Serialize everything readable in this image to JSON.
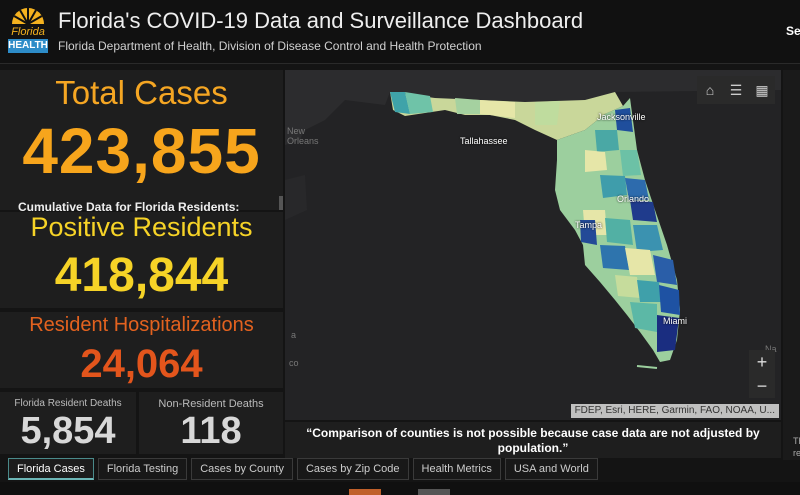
{
  "header": {
    "logo_word1": "Florida",
    "logo_word2": "HEALTH",
    "title": "Florida's COVID-19 Data and Surveillance Dashboard",
    "subtitle": "Florida Department of Health, Division of Disease Control and Health Protection",
    "right_clip": "Se"
  },
  "stats": {
    "total_label": "Total Cases",
    "total_value": "423,855",
    "cumulative_note": "Cumulative Data for Florida Residents:",
    "positive_label": "Positive Residents",
    "positive_value": "418,844",
    "hosp_label": "Resident Hospitalizations",
    "hosp_value": "24,064",
    "deaths_label": "Florida Resident Deaths",
    "deaths_value": "5,854",
    "nr_deaths_label": "Non-Resident Deaths",
    "nr_deaths_value": "118"
  },
  "map": {
    "cities": {
      "new_orleans_1": "New",
      "new_orleans_2": "Orleans",
      "tallahassee": "Tallahassee",
      "jacksonville": "Jacksonville",
      "orlando": "Orlando",
      "tampa": "Tampa",
      "miami": "Miami",
      "gulf_a": "a",
      "gulf_co": "co",
      "na": "Na"
    },
    "attribution": "FDEP, Esri, HERE, Garmin, FAO, NOAA, U...",
    "zoom_in": "+",
    "zoom_out": "−",
    "buttons": [
      "home-icon",
      "legend-icon",
      "basemap-icon"
    ]
  },
  "right_strip": {
    "t1": "Th",
    "t2": "re"
  },
  "note": "“Comparison of counties is not possible because case data are not adjusted by population.”",
  "tabs": [
    "Florida Cases",
    "Florida Testing",
    "Cases by County",
    "Cases by Zip Code",
    "Health Metrics",
    "USA and World"
  ],
  "colors": {
    "total": "#f7a51c",
    "positive": "#f6d327",
    "hospitalizations": "#e3551c",
    "deaths": "#d8d8d8",
    "map_low": "#e6e6a8",
    "map_mid": "#52b0a4",
    "map_high": "#1f3b8c"
  }
}
